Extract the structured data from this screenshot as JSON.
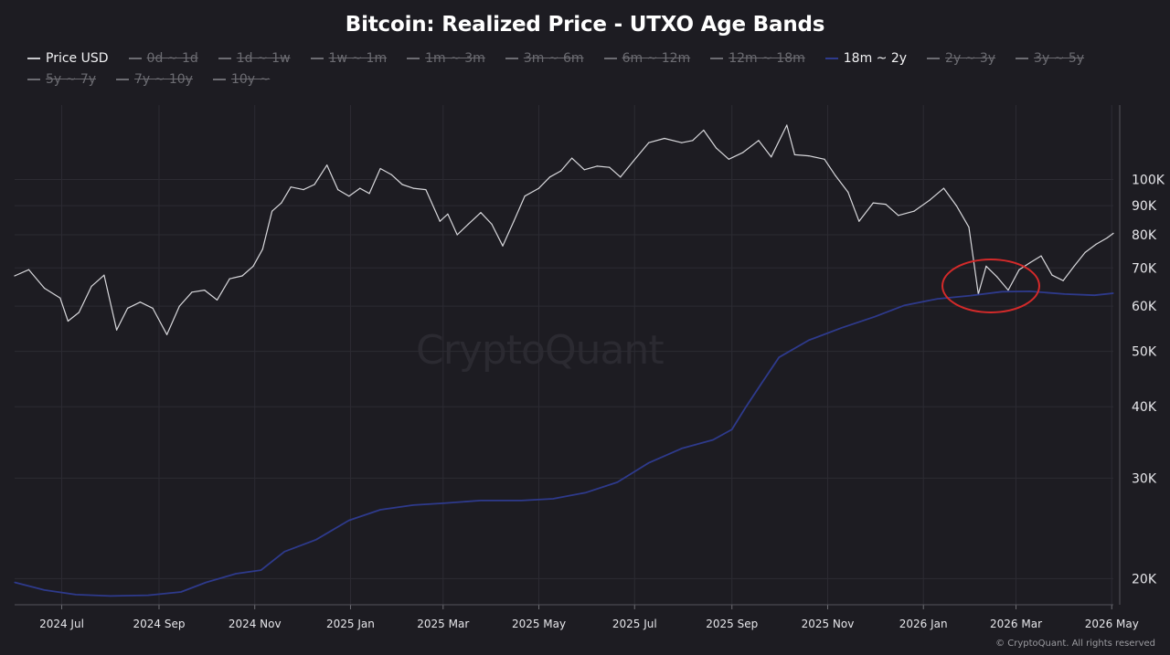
{
  "title": "Bitcoin: Realized Price - UTXO Age Bands",
  "legend": [
    {
      "label": "Price USD",
      "state": "active",
      "color": "#c8c8cc"
    },
    {
      "label": "0d ~ 1d",
      "state": "hidden",
      "color": "#6c6c72"
    },
    {
      "label": "1d ~ 1w",
      "state": "hidden",
      "color": "#6c6c72"
    },
    {
      "label": "1w ~ 1m",
      "state": "hidden",
      "color": "#6c6c72"
    },
    {
      "label": "1m ~ 3m",
      "state": "hidden",
      "color": "#6c6c72"
    },
    {
      "label": "3m ~ 6m",
      "state": "hidden",
      "color": "#6c6c72"
    },
    {
      "label": "6m ~ 12m",
      "state": "hidden",
      "color": "#6c6c72"
    },
    {
      "label": "12m ~ 18m",
      "state": "hidden",
      "color": "#6c6c72"
    },
    {
      "label": "18m ~ 2y",
      "state": "active",
      "color": "#2e3a8c"
    },
    {
      "label": "2y ~ 3y",
      "state": "hidden",
      "color": "#6c6c72"
    },
    {
      "label": "3y ~ 5y",
      "state": "hidden",
      "color": "#6c6c72"
    },
    {
      "label": "5y ~ 7y",
      "state": "hidden",
      "color": "#6c6c72"
    },
    {
      "label": "7y ~ 10y",
      "state": "hidden",
      "color": "#6c6c72"
    },
    {
      "label": "10y ~",
      "state": "hidden",
      "color": "#6c6c72"
    }
  ],
  "watermark": "CryptoQuant",
  "copyright": "© CryptoQuant. All rights reserved",
  "colors": {
    "background": "#1d1c22",
    "price_line": "#d8d8dc",
    "band_line": "#2e3a8c",
    "grid": "#2c2b33",
    "annotation": "#d42a2a"
  },
  "chart_data": {
    "type": "line",
    "y_scale": "log",
    "ylim": [
      18000,
      135000
    ],
    "y_ticks": [
      {
        "value": 20000,
        "label": "20K"
      },
      {
        "value": 30000,
        "label": "30K"
      },
      {
        "value": 40000,
        "label": "40K"
      },
      {
        "value": 50000,
        "label": "50K"
      },
      {
        "value": 60000,
        "label": "60K"
      },
      {
        "value": 70000,
        "label": "70K"
      },
      {
        "value": 80000,
        "label": "80K"
      },
      {
        "value": 90000,
        "label": "90K"
      },
      {
        "value": 100000,
        "label": "100K"
      }
    ],
    "xlim": [
      "2024-06-01",
      "2026-05-02"
    ],
    "x_ticks": [
      {
        "value": "2024-07-01",
        "label": "2024 Jul"
      },
      {
        "value": "2024-09-01",
        "label": "2024 Sep"
      },
      {
        "value": "2024-11-01",
        "label": "2024 Nov"
      },
      {
        "value": "2025-01-01",
        "label": "2025 Jan"
      },
      {
        "value": "2025-03-01",
        "label": "2025 Mar"
      },
      {
        "value": "2025-05-01",
        "label": "2025 May"
      },
      {
        "value": "2025-07-01",
        "label": "2025 Jul"
      },
      {
        "value": "2025-09-01",
        "label": "2025 Sep"
      },
      {
        "value": "2025-11-01",
        "label": "2025 Nov"
      },
      {
        "value": "2026-01-01",
        "label": "2026 Jan"
      },
      {
        "value": "2026-03-01",
        "label": "2026 Mar"
      },
      {
        "value": "2026-05-01",
        "label": "2026 May"
      }
    ],
    "annotation": {
      "type": "circle",
      "x": "2026-02-15",
      "y": 64000
    },
    "series": [
      {
        "name": "Price USD",
        "points": [
          [
            "2024-06-01",
            67800
          ],
          [
            "2024-06-10",
            69500
          ],
          [
            "2024-06-20",
            64500
          ],
          [
            "2024-06-30",
            62000
          ],
          [
            "2024-07-05",
            56500
          ],
          [
            "2024-07-12",
            58500
          ],
          [
            "2024-07-20",
            65000
          ],
          [
            "2024-07-28",
            68000
          ],
          [
            "2024-08-05",
            54500
          ],
          [
            "2024-08-12",
            59500
          ],
          [
            "2024-08-20",
            61000
          ],
          [
            "2024-08-28",
            59500
          ],
          [
            "2024-09-06",
            53500
          ],
          [
            "2024-09-14",
            60000
          ],
          [
            "2024-09-22",
            63500
          ],
          [
            "2024-09-30",
            64000
          ],
          [
            "2024-10-08",
            61500
          ],
          [
            "2024-10-16",
            67000
          ],
          [
            "2024-10-24",
            67800
          ],
          [
            "2024-10-31",
            70500
          ],
          [
            "2024-11-06",
            75500
          ],
          [
            "2024-11-12",
            88000
          ],
          [
            "2024-11-18",
            91000
          ],
          [
            "2024-11-24",
            97000
          ],
          [
            "2024-12-02",
            96000
          ],
          [
            "2024-12-09",
            98000
          ],
          [
            "2024-12-17",
            106000
          ],
          [
            "2024-12-24",
            96000
          ],
          [
            "2024-12-31",
            93500
          ],
          [
            "2025-01-07",
            96500
          ],
          [
            "2025-01-13",
            94500
          ],
          [
            "2025-01-20",
            104500
          ],
          [
            "2025-01-27",
            102000
          ],
          [
            "2025-02-03",
            98000
          ],
          [
            "2025-02-10",
            96500
          ],
          [
            "2025-02-18",
            96000
          ],
          [
            "2025-02-27",
            84500
          ],
          [
            "2025-03-04",
            87000
          ],
          [
            "2025-03-10",
            80000
          ],
          [
            "2025-03-17",
            83500
          ],
          [
            "2025-03-25",
            87500
          ],
          [
            "2025-04-01",
            83500
          ],
          [
            "2025-04-08",
            76500
          ],
          [
            "2025-04-15",
            84500
          ],
          [
            "2025-04-22",
            93500
          ],
          [
            "2025-05-01",
            96500
          ],
          [
            "2025-05-08",
            101000
          ],
          [
            "2025-05-15",
            103500
          ],
          [
            "2025-05-22",
            109000
          ],
          [
            "2025-05-30",
            104000
          ],
          [
            "2025-06-07",
            105500
          ],
          [
            "2025-06-15",
            105000
          ],
          [
            "2025-06-22",
            101000
          ],
          [
            "2025-06-30",
            107500
          ],
          [
            "2025-07-10",
            116000
          ],
          [
            "2025-07-20",
            118000
          ],
          [
            "2025-07-31",
            116000
          ],
          [
            "2025-08-07",
            117000
          ],
          [
            "2025-08-14",
            122000
          ],
          [
            "2025-08-22",
            113500
          ],
          [
            "2025-08-30",
            108500
          ],
          [
            "2025-09-08",
            111500
          ],
          [
            "2025-09-18",
            117000
          ],
          [
            "2025-09-26",
            109500
          ],
          [
            "2025-10-06",
            124500
          ],
          [
            "2025-10-11",
            110500
          ],
          [
            "2025-10-20",
            110000
          ],
          [
            "2025-10-30",
            108500
          ],
          [
            "2025-11-06",
            101500
          ],
          [
            "2025-11-14",
            95000
          ],
          [
            "2025-11-21",
            84500
          ],
          [
            "2025-11-30",
            91000
          ],
          [
            "2025-12-08",
            90500
          ],
          [
            "2025-12-16",
            86500
          ],
          [
            "2025-12-26",
            88000
          ],
          [
            "2026-01-05",
            92000
          ],
          [
            "2026-01-14",
            96500
          ],
          [
            "2026-01-22",
            90000
          ],
          [
            "2026-01-30",
            82500
          ],
          [
            "2026-02-05",
            63000
          ],
          [
            "2026-02-10",
            70500
          ],
          [
            "2026-02-17",
            67500
          ],
          [
            "2026-02-24",
            64000
          ],
          [
            "2026-03-03",
            69500
          ],
          [
            "2026-03-10",
            71500
          ],
          [
            "2026-03-17",
            73500
          ],
          [
            "2026-03-24",
            68000
          ],
          [
            "2026-03-31",
            66500
          ],
          [
            "2026-04-07",
            70500
          ],
          [
            "2026-04-14",
            74500
          ],
          [
            "2026-04-21",
            77000
          ],
          [
            "2026-04-28",
            79000
          ],
          [
            "2026-05-02",
            80500
          ]
        ]
      },
      {
        "name": "18m ~ 2y",
        "points": [
          [
            "2024-06-01",
            19700
          ],
          [
            "2024-06-20",
            19100
          ],
          [
            "2024-07-10",
            18750
          ],
          [
            "2024-08-01",
            18650
          ],
          [
            "2024-08-25",
            18700
          ],
          [
            "2024-09-15",
            18950
          ],
          [
            "2024-10-01",
            19700
          ],
          [
            "2024-10-20",
            20400
          ],
          [
            "2024-11-05",
            20700
          ],
          [
            "2024-11-20",
            22300
          ],
          [
            "2024-12-10",
            23400
          ],
          [
            "2024-12-31",
            25300
          ],
          [
            "2025-01-20",
            26400
          ],
          [
            "2025-02-10",
            26900
          ],
          [
            "2025-03-01",
            27100
          ],
          [
            "2025-03-25",
            27400
          ],
          [
            "2025-04-20",
            27400
          ],
          [
            "2025-05-10",
            27600
          ],
          [
            "2025-05-31",
            28300
          ],
          [
            "2025-06-20",
            29500
          ],
          [
            "2025-07-10",
            31900
          ],
          [
            "2025-07-31",
            33800
          ],
          [
            "2025-08-20",
            35000
          ],
          [
            "2025-09-01",
            36500
          ],
          [
            "2025-09-10",
            40000
          ],
          [
            "2025-09-20",
            44000
          ],
          [
            "2025-10-01",
            48800
          ],
          [
            "2025-10-20",
            52300
          ],
          [
            "2025-11-10",
            55000
          ],
          [
            "2025-12-01",
            57500
          ],
          [
            "2025-12-20",
            60200
          ],
          [
            "2026-01-10",
            61800
          ],
          [
            "2026-01-31",
            62600
          ],
          [
            "2026-02-20",
            63600
          ],
          [
            "2026-03-10",
            63700
          ],
          [
            "2026-04-01",
            63000
          ],
          [
            "2026-04-20",
            62700
          ],
          [
            "2026-05-02",
            63200
          ]
        ]
      }
    ]
  }
}
